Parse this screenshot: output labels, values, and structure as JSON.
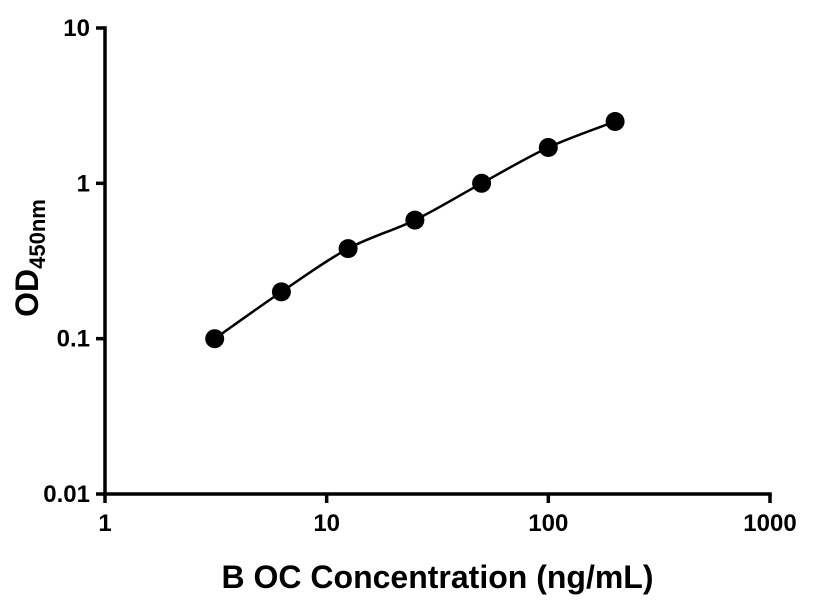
{
  "chart_data": {
    "type": "scatter",
    "title": "",
    "xlabel": "B OC Concentration (ng/mL)",
    "ylabel": "OD",
    "ylabel_subscript": "450nm",
    "x_scale": "log",
    "y_scale": "log",
    "xlim": [
      1,
      1000
    ],
    "ylim": [
      0.01,
      10
    ],
    "x_ticks": [
      1,
      10,
      100,
      1000
    ],
    "x_tick_labels": [
      "1",
      "10",
      "100",
      "1000"
    ],
    "y_ticks": [
      0.01,
      0.1,
      1,
      10
    ],
    "y_tick_labels": [
      "0.01",
      "0.1",
      "1",
      "10"
    ],
    "grid": false,
    "legend": false,
    "marker": "filled-circle",
    "marker_color": "#000000",
    "line_color": "#000000",
    "axis_color": "#000000",
    "curve": "smooth-fit-through-points",
    "points": [
      {
        "x": 3.125,
        "y": 0.1
      },
      {
        "x": 6.25,
        "y": 0.2
      },
      {
        "x": 12.5,
        "y": 0.38
      },
      {
        "x": 25,
        "y": 0.58
      },
      {
        "x": 50,
        "y": 1.0
      },
      {
        "x": 100,
        "y": 1.7
      },
      {
        "x": 200,
        "y": 2.5
      }
    ]
  }
}
